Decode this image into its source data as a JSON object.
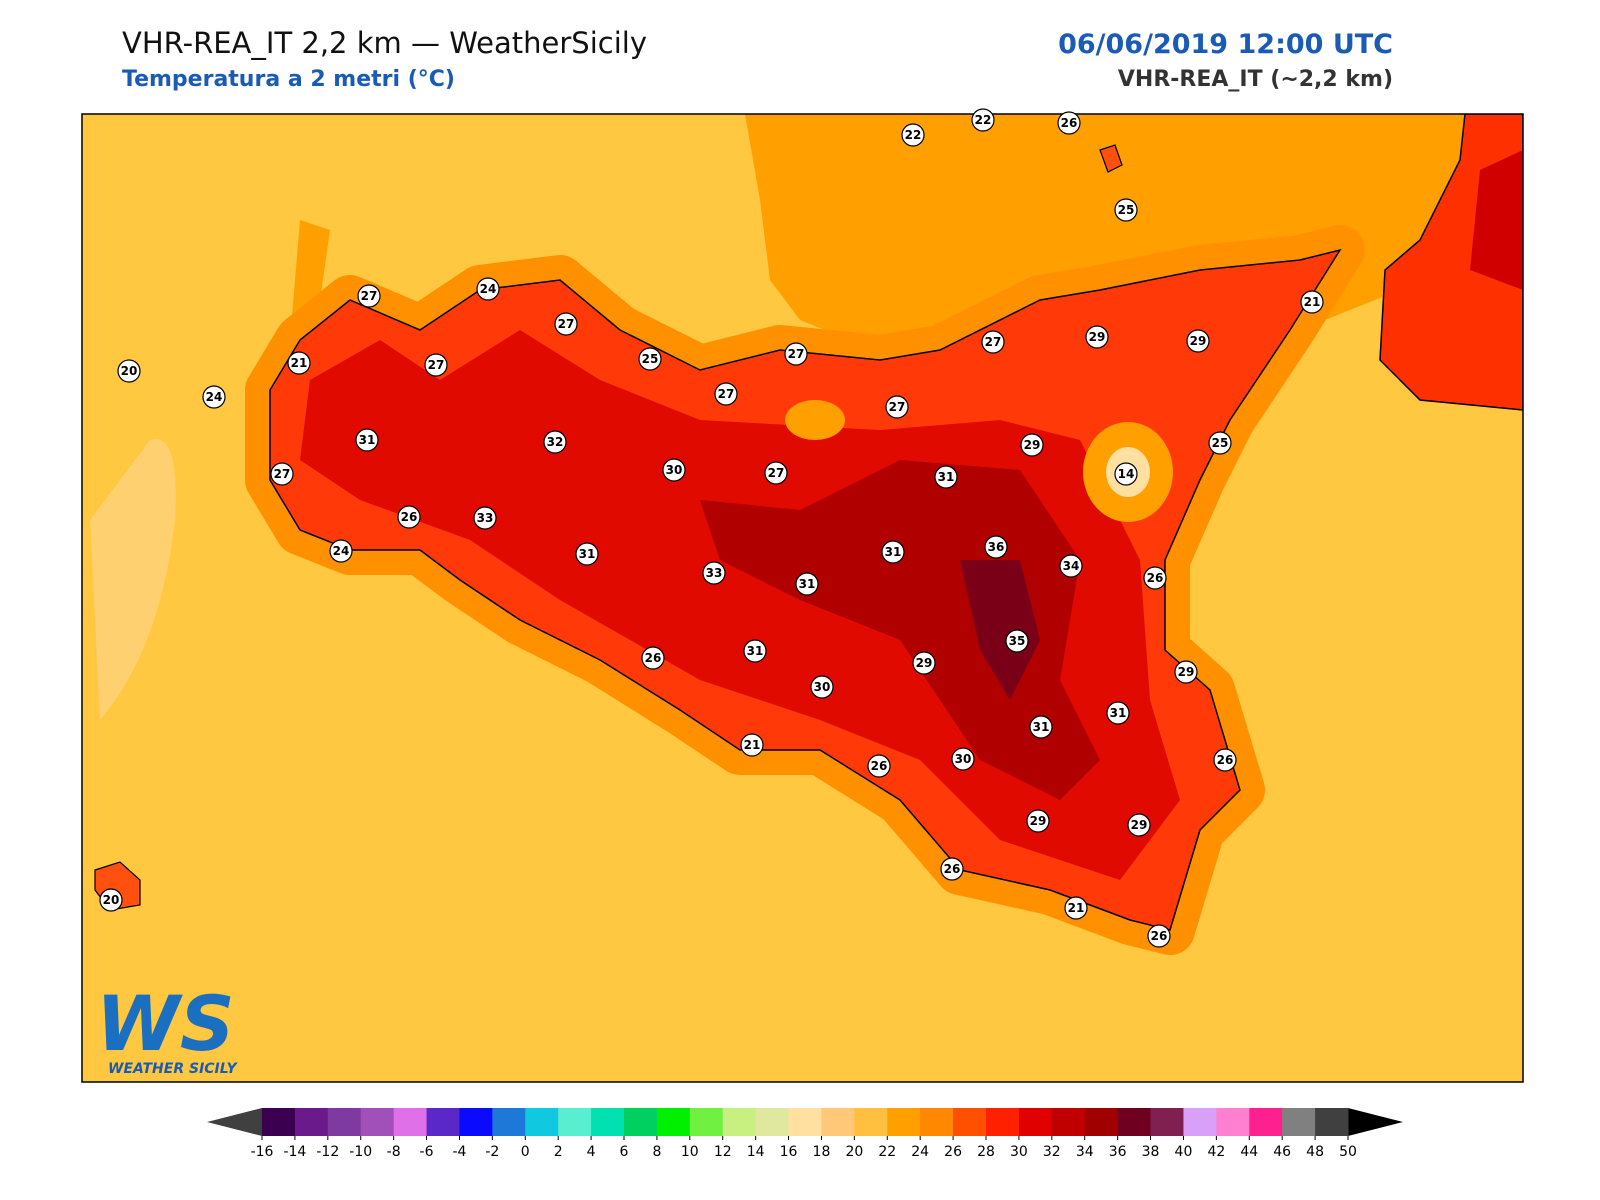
{
  "header": {
    "title": "VHR-REA_IT 2,2 km — WeatherSicily",
    "subtitle": "Temperatura a 2 metri (°C)",
    "date": "06/06/2019 12:00 UTC",
    "model": "VHR-REA_IT (~2,2 km)"
  },
  "stations": [
    22,
    22,
    26,
    25,
    24,
    27,
    27,
    21,
    27,
    25,
    27,
    27,
    29,
    29,
    21,
    20,
    24,
    27,
    27,
    31,
    32,
    30,
    27,
    29,
    31,
    14,
    25,
    27,
    26,
    33,
    24,
    31,
    31,
    36,
    34,
    26,
    33,
    31,
    35,
    26,
    31,
    29,
    30,
    29,
    31,
    31,
    21,
    26,
    30,
    26,
    29,
    29,
    26,
    21,
    26,
    20
  ],
  "colorbar": {
    "ticks": [
      -16,
      -14,
      -12,
      -10,
      -8,
      -6,
      -4,
      -2,
      0,
      2,
      4,
      6,
      8,
      10,
      12,
      14,
      16,
      18,
      20,
      22,
      24,
      26,
      28,
      30,
      32,
      34,
      36,
      38,
      40,
      42,
      44,
      46,
      48,
      50
    ],
    "colors": [
      "#3b0050",
      "#6a1a8a",
      "#7e3aa0",
      "#a050b8",
      "#e070e8",
      "#5a28c8",
      "#0a0aff",
      "#1e78d8",
      "#10c8e0",
      "#5aeed0",
      "#00e0b0",
      "#00d060",
      "#00f000",
      "#70f040",
      "#c8f080",
      "#e0e8a0",
      "#ffe0a0",
      "#ffc878",
      "#ffc040",
      "#ffa000",
      "#ff8800",
      "#ff5000",
      "#ff2000",
      "#e00000",
      "#c00000",
      "#a00000",
      "#700020",
      "#802050",
      "#d8a0f8",
      "#ff80d0",
      "#ff2090",
      "#808080",
      "#404040"
    ],
    "under": "#404040",
    "over": "#000000"
  },
  "logo": {
    "mark": "WS",
    "name": "WEATHER SICILY"
  }
}
